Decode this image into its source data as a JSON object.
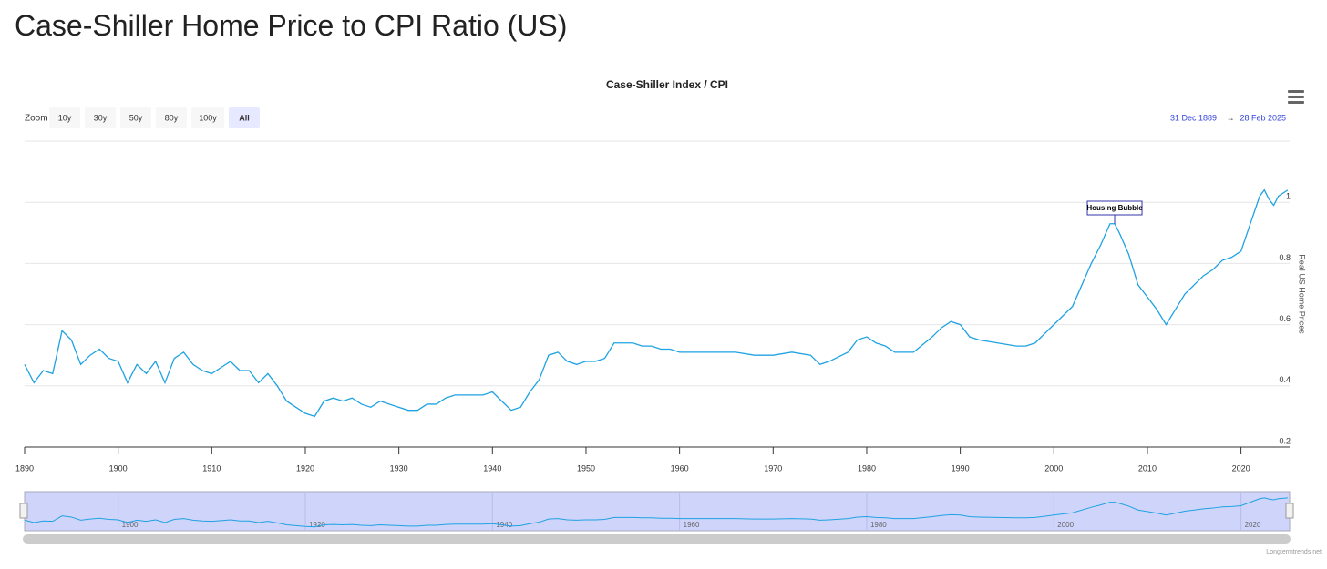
{
  "page_title": "Case-Shiller Home Price to CPI Ratio (US)",
  "zoom": {
    "label": "Zoom",
    "buttons": [
      "10y",
      "30y",
      "50y",
      "80y",
      "100y",
      "All"
    ],
    "selected": "All"
  },
  "range": {
    "from": "31 Dec 1889",
    "separator": "→",
    "to": "28 Feb 2025"
  },
  "credits": "Longtermtrends.net",
  "chart_data": {
    "type": "line",
    "title": "Case-Shiller Index / CPI",
    "y_axis_label": "Real US Home Prices",
    "color": "#1fa2e2",
    "xlim": [
      1890,
      2025.2
    ],
    "ylim": [
      0.2,
      1.2
    ],
    "xticks": [
      1890,
      1900,
      1910,
      1920,
      1930,
      1940,
      1950,
      1960,
      1970,
      1980,
      1990,
      2000,
      2010,
      2020
    ],
    "yticks": [
      0.2,
      0.4,
      0.6,
      0.8,
      1
    ],
    "navigator_xticks": [
      1900,
      1920,
      1940,
      1960,
      1980,
      2000,
      2020
    ],
    "grid": true,
    "x": [
      1890,
      1891,
      1892,
      1893,
      1894,
      1895,
      1896,
      1897,
      1898,
      1899,
      1900,
      1901,
      1902,
      1903,
      1904,
      1905,
      1906,
      1907,
      1908,
      1909,
      1910,
      1911,
      1912,
      1913,
      1914,
      1915,
      1916,
      1917,
      1918,
      1919,
      1920,
      1921,
      1922,
      1923,
      1924,
      1925,
      1926,
      1927,
      1928,
      1929,
      1930,
      1931,
      1932,
      1933,
      1934,
      1935,
      1936,
      1937,
      1938,
      1939,
      1940,
      1941,
      1942,
      1943,
      1944,
      1945,
      1946,
      1947,
      1948,
      1949,
      1950,
      1951,
      1952,
      1953,
      1954,
      1955,
      1956,
      1957,
      1958,
      1959,
      1960,
      1962,
      1964,
      1966,
      1968,
      1970,
      1972,
      1974,
      1975,
      1976,
      1978,
      1979,
      1980,
      1981,
      1982,
      1983,
      1985,
      1987,
      1988,
      1989,
      1990,
      1991,
      1992,
      1994,
      1996,
      1997,
      1998,
      2000,
      2002,
      2004,
      2005,
      2006,
      2006.5,
      2007,
      2008,
      2009,
      2010,
      2011,
      2012,
      2013,
      2014,
      2015,
      2016,
      2017,
      2018,
      2019,
      2020,
      2021,
      2022,
      2022.5,
      2023,
      2023.5,
      2024,
      2025
    ],
    "values": [
      0.47,
      0.41,
      0.45,
      0.44,
      0.58,
      0.55,
      0.47,
      0.5,
      0.52,
      0.49,
      0.48,
      0.41,
      0.47,
      0.44,
      0.48,
      0.41,
      0.49,
      0.51,
      0.47,
      0.45,
      0.44,
      0.46,
      0.48,
      0.45,
      0.45,
      0.41,
      0.44,
      0.4,
      0.35,
      0.33,
      0.31,
      0.3,
      0.35,
      0.36,
      0.35,
      0.36,
      0.34,
      0.33,
      0.35,
      0.34,
      0.33,
      0.32,
      0.32,
      0.34,
      0.34,
      0.36,
      0.37,
      0.37,
      0.37,
      0.37,
      0.38,
      0.35,
      0.32,
      0.33,
      0.38,
      0.42,
      0.5,
      0.51,
      0.48,
      0.47,
      0.48,
      0.48,
      0.49,
      0.54,
      0.54,
      0.54,
      0.53,
      0.53,
      0.52,
      0.52,
      0.51,
      0.51,
      0.51,
      0.51,
      0.5,
      0.5,
      0.51,
      0.5,
      0.47,
      0.48,
      0.51,
      0.55,
      0.56,
      0.54,
      0.53,
      0.51,
      0.51,
      0.56,
      0.59,
      0.61,
      0.6,
      0.56,
      0.55,
      0.54,
      0.53,
      0.53,
      0.54,
      0.6,
      0.66,
      0.8,
      0.86,
      0.93,
      0.93,
      0.9,
      0.83,
      0.73,
      0.69,
      0.65,
      0.6,
      0.65,
      0.7,
      0.73,
      0.76,
      0.78,
      0.81,
      0.82,
      0.84,
      0.93,
      1.02,
      1.04,
      1.01,
      0.99,
      1.02,
      1.04
    ],
    "annotation": {
      "text": "Housing Bubble",
      "x": 2006.5
    }
  }
}
